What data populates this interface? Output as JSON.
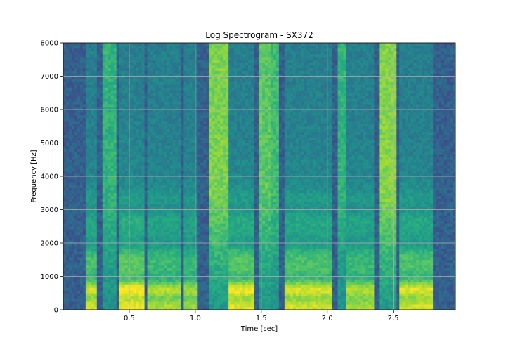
{
  "chart_data": {
    "type": "heatmap",
    "title": "Log Spectrogram - SX372",
    "xlabel": "Time [sec]",
    "ylabel": "Frequency [Hz]",
    "xlim": [
      0.0,
      2.97
    ],
    "ylim": [
      0,
      8000
    ],
    "x_ticks": [
      0.5,
      1.0,
      1.5,
      2.0,
      2.5
    ],
    "x_tick_labels": [
      "0.5",
      "1.0",
      "1.5",
      "2.0",
      "2.5"
    ],
    "y_ticks": [
      0,
      1000,
      2000,
      3000,
      4000,
      5000,
      6000,
      7000,
      8000
    ],
    "y_tick_labels": [
      "0",
      "1000",
      "2000",
      "3000",
      "4000",
      "5000",
      "6000",
      "7000",
      "8000"
    ],
    "grid": true,
    "colormap": "viridis",
    "segments": [
      {
        "t0": 0.16,
        "t1": 0.26,
        "kind": "voiced",
        "strength": 0.85
      },
      {
        "t0": 0.3,
        "t1": 0.4,
        "kind": "fricative",
        "strength": 0.5
      },
      {
        "t0": 0.42,
        "t1": 0.62,
        "kind": "voiced",
        "strength": 0.95
      },
      {
        "t0": 0.64,
        "t1": 0.9,
        "kind": "voiced",
        "strength": 0.75
      },
      {
        "t0": 0.92,
        "t1": 1.02,
        "kind": "voiced",
        "strength": 0.7
      },
      {
        "t0": 1.1,
        "t1": 1.26,
        "kind": "fricative",
        "strength": 0.9
      },
      {
        "t0": 1.26,
        "t1": 1.44,
        "kind": "voiced",
        "strength": 0.9
      },
      {
        "t0": 1.48,
        "t1": 1.56,
        "kind": "fricative",
        "strength": 0.75
      },
      {
        "t0": 1.58,
        "t1": 1.64,
        "kind": "fricative",
        "strength": 0.6
      },
      {
        "t0": 1.68,
        "t1": 2.04,
        "kind": "voiced",
        "strength": 0.85
      },
      {
        "t0": 2.08,
        "t1": 2.14,
        "kind": "fricative",
        "strength": 0.5
      },
      {
        "t0": 2.14,
        "t1": 2.36,
        "kind": "voiced",
        "strength": 0.75
      },
      {
        "t0": 2.4,
        "t1": 2.52,
        "kind": "fricative",
        "strength": 0.95
      },
      {
        "t0": 2.54,
        "t1": 2.8,
        "kind": "voiced",
        "strength": 0.85
      }
    ]
  }
}
